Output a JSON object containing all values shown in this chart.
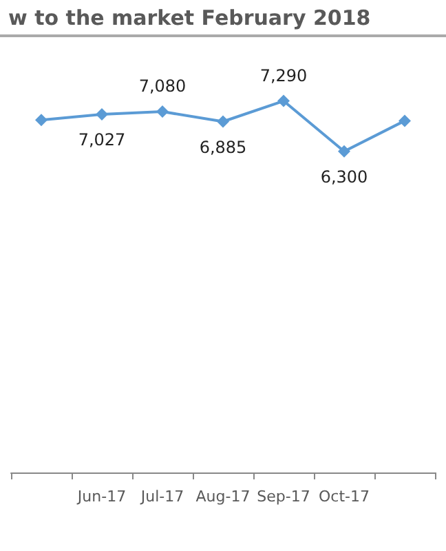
{
  "chart_data": {
    "type": "line",
    "title": "w to the market February 2018",
    "categories": [
      null,
      "Jun-17",
      "Jul-17",
      "Aug-17",
      "Sep-17",
      "Oct-17",
      null
    ],
    "series": [
      {
        "color": "#5b9bd5",
        "values": [
          6915,
          7027,
          7080,
          6885,
          7290,
          6300,
          6900
        ],
        "value_labels": [
          null,
          "7,027",
          "7,080",
          "6,885",
          "7,290",
          "6,300",
          null
        ]
      }
    ],
    "marker": "diamond",
    "grid": false
  }
}
